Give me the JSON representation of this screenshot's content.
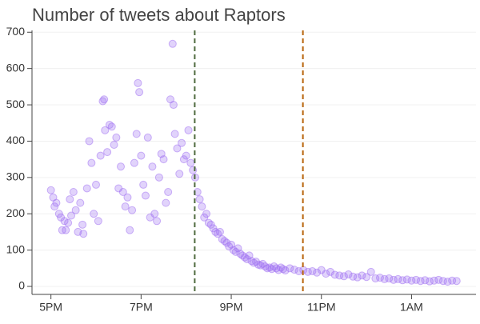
{
  "chart_data": {
    "type": "scatter",
    "title": "Number of tweets about Raptors",
    "color": "#9d6cf2",
    "x": [
      17.0,
      17.05,
      17.08,
      17.12,
      17.18,
      17.22,
      17.25,
      17.3,
      17.33,
      17.38,
      17.42,
      17.45,
      17.5,
      17.55,
      17.6,
      17.65,
      17.7,
      17.72,
      17.8,
      17.85,
      17.9,
      17.95,
      18.0,
      18.05,
      18.1,
      18.15,
      18.18,
      18.2,
      18.25,
      18.3,
      18.35,
      18.4,
      18.45,
      18.5,
      18.55,
      18.6,
      18.65,
      18.7,
      18.75,
      18.8,
      18.85,
      18.9,
      18.93,
      18.96,
      19.0,
      19.05,
      19.1,
      19.15,
      19.2,
      19.25,
      19.3,
      19.35,
      19.4,
      19.45,
      19.5,
      19.55,
      19.6,
      19.65,
      19.7,
      19.72,
      19.75,
      19.8,
      19.85,
      19.9,
      19.95,
      20.0,
      20.05,
      20.1,
      20.15,
      20.2,
      20.25,
      20.3,
      20.35,
      20.4,
      20.45,
      20.5,
      20.55,
      20.6,
      20.65,
      20.7,
      20.75,
      20.8,
      20.85,
      20.9,
      20.95,
      21.0,
      21.05,
      21.1,
      21.15,
      21.2,
      21.25,
      21.3,
      21.35,
      21.4,
      21.45,
      21.5,
      21.55,
      21.6,
      21.65,
      21.7,
      21.75,
      21.8,
      21.85,
      21.9,
      21.95,
      22.0,
      22.05,
      22.1,
      22.15,
      22.2,
      22.3,
      22.4,
      22.5,
      22.6,
      22.7,
      22.8,
      22.9,
      23.0,
      23.1,
      23.2,
      23.3,
      23.4,
      23.5,
      23.6,
      23.7,
      23.8,
      23.9,
      24.0,
      24.1,
      24.2,
      24.3,
      24.4,
      24.5,
      24.6,
      24.7,
      24.8,
      24.9,
      25.0,
      25.1,
      25.2,
      25.3,
      25.4,
      25.5,
      25.6,
      25.7,
      25.8,
      25.9,
      26.0
    ],
    "values": [
      265,
      245,
      220,
      230,
      200,
      190,
      155,
      180,
      155,
      175,
      240,
      195,
      260,
      210,
      150,
      230,
      170,
      145,
      270,
      400,
      340,
      200,
      280,
      180,
      360,
      510,
      515,
      430,
      370,
      445,
      440,
      390,
      410,
      270,
      330,
      260,
      220,
      245,
      155,
      210,
      340,
      420,
      560,
      535,
      360,
      280,
      250,
      410,
      190,
      330,
      200,
      180,
      300,
      365,
      350,
      230,
      260,
      515,
      668,
      500,
      420,
      380,
      310,
      395,
      350,
      360,
      430,
      340,
      320,
      300,
      260,
      240,
      220,
      190,
      200,
      175,
      170,
      160,
      150,
      145,
      150,
      130,
      125,
      120,
      110,
      115,
      100,
      95,
      105,
      90,
      85,
      80,
      75,
      85,
      70,
      65,
      68,
      60,
      58,
      62,
      55,
      50,
      52,
      48,
      55,
      50,
      45,
      52,
      48,
      44,
      50,
      46,
      42,
      45,
      40,
      42,
      38,
      45,
      35,
      40,
      32,
      30,
      28,
      33,
      27,
      25,
      30,
      26,
      40,
      22,
      24,
      20,
      22,
      18,
      20,
      17,
      19,
      16,
      18,
      15,
      17,
      14,
      16,
      18,
      15,
      13,
      16,
      15
    ],
    "xlim": [
      16.58,
      26.43
    ],
    "xticks": [
      {
        "value": 17,
        "label": "5PM"
      },
      {
        "value": 19,
        "label": "7PM"
      },
      {
        "value": 21,
        "label": "9PM"
      },
      {
        "value": 23,
        "label": "11PM"
      },
      {
        "value": 25,
        "label": "1AM"
      }
    ],
    "ylim": [
      -22,
      705
    ],
    "yticks": [
      0,
      100,
      200,
      300,
      400,
      500,
      600,
      700
    ],
    "grid": true,
    "vlines": [
      {
        "x": 20.19,
        "color": "#4f6b3f"
      },
      {
        "x": 22.59,
        "color": "#b8640a"
      }
    ]
  }
}
